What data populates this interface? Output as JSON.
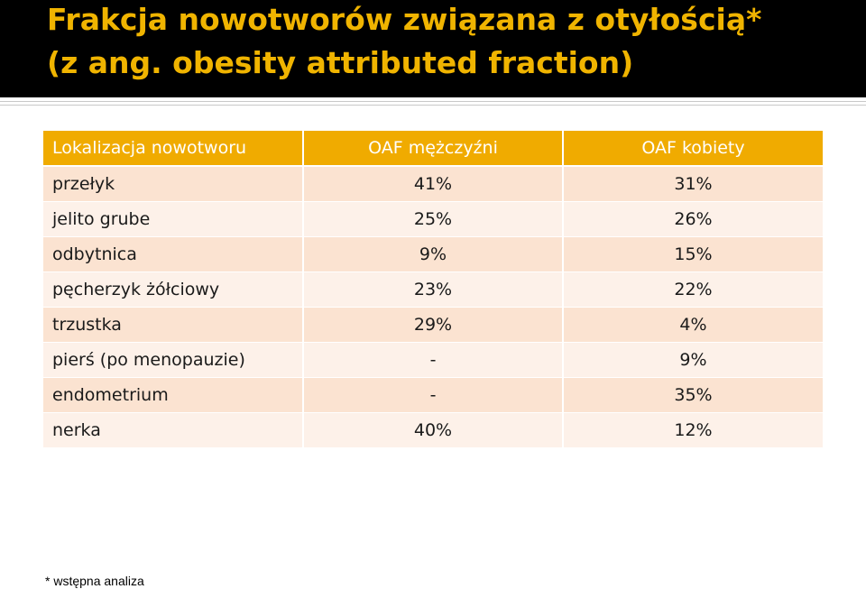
{
  "title": {
    "line1": "Frakcja nowotworów związana z otyłością*",
    "line2": "(z ang. obesity attributed fraction)"
  },
  "table": {
    "headers": [
      "Lokalizacja nowotworu",
      "OAF mężczyźni",
      "OAF kobiety"
    ],
    "rows": [
      [
        "przełyk",
        "41%",
        "31%"
      ],
      [
        "jelito grube",
        "25%",
        "26%"
      ],
      [
        "odbytnica",
        "9%",
        "15%"
      ],
      [
        "pęcherzyk żółciowy",
        "23%",
        "22%"
      ],
      [
        "trzustka",
        "29%",
        "4%"
      ],
      [
        "pierś (po menopauzie)",
        "-",
        "9%"
      ],
      [
        "endometrium",
        "-",
        "35%"
      ],
      [
        "nerka",
        "40%",
        "12%"
      ]
    ]
  },
  "footnote": "* wstępna analiza",
  "colors": {
    "title_bg": "#000000",
    "title_text": "#f0b400",
    "header_bg": "#f0ab00",
    "row_odd_bg": "#fbe3d1",
    "row_even_bg": "#fdf1e9"
  }
}
